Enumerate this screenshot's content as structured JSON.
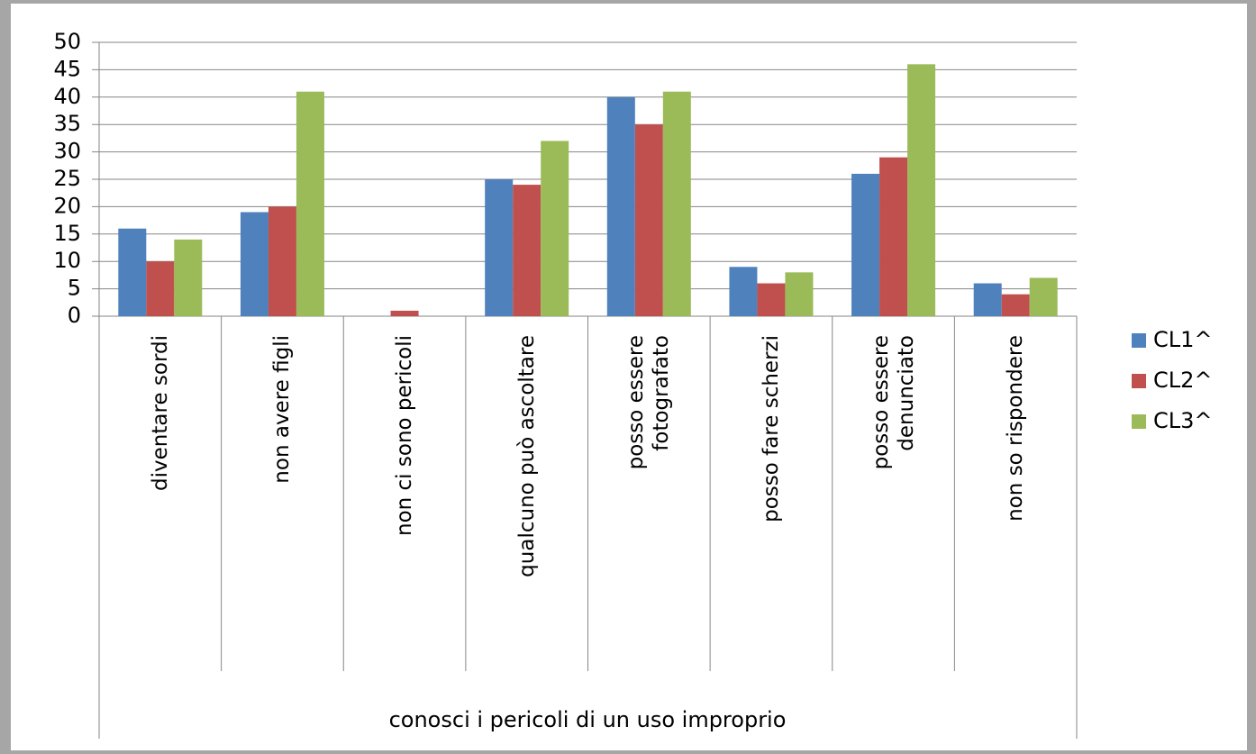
{
  "chart_data": {
    "type": "bar",
    "xlabel": "conosci i pericoli di un uso improprio",
    "categories": [
      "diventare sordi",
      "non avere figli",
      "non ci sono pericoli",
      "qualcuno può ascoltare",
      "posso essere\nfotografato",
      "posso fare scherzi",
      "posso essere\ndenunciato",
      "non so rispondere"
    ],
    "series": [
      {
        "name": "CL1^",
        "color": "#4f81bd",
        "values": [
          16,
          19,
          0,
          25,
          40,
          9,
          26,
          6
        ]
      },
      {
        "name": "CL2^",
        "color": "#c0504d",
        "values": [
          10,
          20,
          1,
          24,
          35,
          6,
          29,
          4
        ]
      },
      {
        "name": "CL3^",
        "color": "#9bbb59",
        "values": [
          14,
          41,
          0,
          32,
          41,
          8,
          46,
          7
        ]
      }
    ],
    "ylim": [
      0,
      50
    ],
    "yticks": [
      0,
      5,
      10,
      15,
      20,
      25,
      30,
      35,
      40,
      45,
      50
    ],
    "grid": true,
    "legend": "right"
  }
}
